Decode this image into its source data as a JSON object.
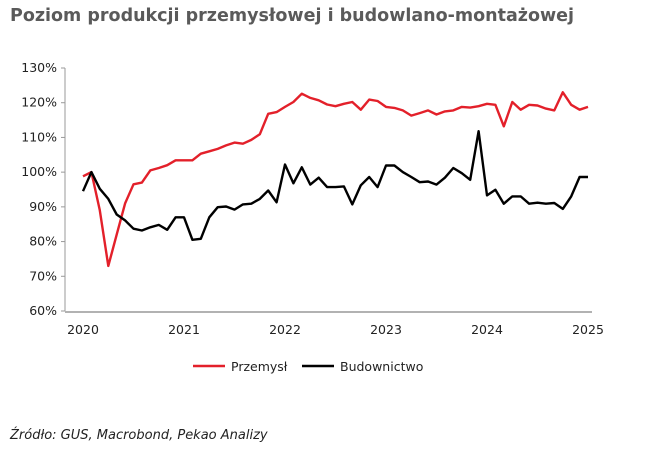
{
  "title": "Poziom produkcji przemysłowej i budowlano-montażowej",
  "source": "Źródło: GUS, Macrobond, Pekao Analizy",
  "chart_data": {
    "type": "line",
    "title": "Poziom produkcji przemysłowej i budowlano-montażowej",
    "frequency": "monthly",
    "start": "2020-01",
    "x_ticks": [
      "2020",
      "2021",
      "2022",
      "2023",
      "2024",
      "2025"
    ],
    "y_ticks": [
      "60%",
      "70%",
      "80%",
      "90%",
      "100%",
      "110%",
      "120%",
      "130%"
    ],
    "ylim": [
      60,
      130
    ],
    "grid": false,
    "legend": "bottom",
    "series": [
      {
        "name": "Przemysł",
        "color": "#e3202a",
        "values": [
          98.8,
          100,
          89,
          73,
          82,
          91,
          96.5,
          97,
          100.5,
          101.2,
          102,
          103.4,
          103.4,
          103.4,
          105.3,
          106,
          106.7,
          107.7,
          108.5,
          108.2,
          109.3,
          110.9,
          116.8,
          117.3,
          118.8,
          120.2,
          122.6,
          121.4,
          120.7,
          119.5,
          119,
          119.7,
          120.2,
          118,
          120.9,
          120.5,
          118.8,
          118.5,
          117.8,
          116.3,
          117,
          117.8,
          116.6,
          117.5,
          117.8,
          118.8,
          118.6,
          119,
          119.7,
          119.4,
          113.2,
          120.2,
          118,
          119.4,
          119.2,
          118.3,
          117.8,
          123,
          119.4,
          118,
          118.8
        ]
      },
      {
        "name": "Budownictwo",
        "color": "#000000",
        "values": [
          94.5,
          100,
          95.2,
          92.3,
          87.8,
          86.1,
          83.7,
          83.2,
          84.1,
          84.8,
          83.4,
          87,
          87,
          80.5,
          80.8,
          87,
          89.9,
          90.1,
          89.2,
          90.7,
          90.9,
          92.3,
          94.7,
          91.3,
          102.2,
          96.8,
          101.4,
          96.4,
          98.4,
          95.7,
          95.7,
          95.9,
          90.7,
          96.2,
          98.6,
          95.7,
          101.9,
          101.9,
          100,
          98.6,
          97.1,
          97.3,
          96.4,
          98.4,
          101.2,
          99.7,
          97.8,
          111.8,
          93.3,
          94.9,
          90.9,
          93,
          93,
          90.9,
          91.2,
          90.9,
          91.1,
          89.4,
          93,
          98.6,
          98.6
        ]
      }
    ]
  }
}
